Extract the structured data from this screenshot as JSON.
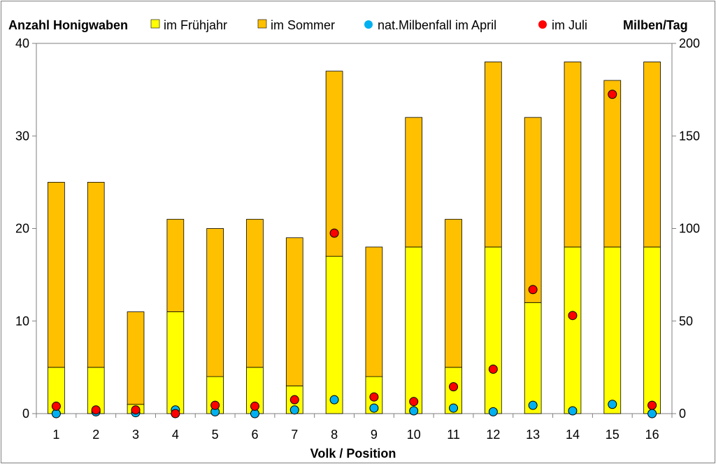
{
  "chart_data": {
    "type": "bar",
    "stacked": true,
    "xlabel": "Volk / Position",
    "y_left_label": "Anzahl Honigwaben",
    "y_right_label": "Milben/Tag",
    "categories": [
      "1",
      "2",
      "3",
      "4",
      "5",
      "6",
      "7",
      "8",
      "9",
      "10",
      "11",
      "12",
      "13",
      "14",
      "15",
      "16"
    ],
    "y_left_lim": [
      0,
      40
    ],
    "y_left_ticks": [
      "0",
      "10",
      "20",
      "30",
      "40"
    ],
    "y_right_lim": [
      0,
      200
    ],
    "y_right_ticks": [
      "0",
      "50",
      "100",
      "150",
      "200"
    ],
    "grid": false,
    "legend_position": "top",
    "bar_series": [
      {
        "name": "im Frühjahr",
        "color": "#ffff00",
        "values": [
          5,
          5,
          1,
          11,
          4,
          5,
          3,
          17,
          4,
          18,
          5,
          18,
          12,
          18,
          18,
          18
        ]
      },
      {
        "name": "im Sommer",
        "color": "#ffc000",
        "values": [
          20,
          20,
          10,
          10,
          16,
          16,
          16,
          20,
          14,
          14,
          16,
          20,
          20,
          20,
          18,
          20
        ]
      }
    ],
    "point_series": [
      {
        "name": "nat.Milbenfall im April",
        "color": "#00b0f0",
        "axis": "right",
        "values": [
          0,
          1,
          0.5,
          2,
          1,
          0,
          2,
          7.5,
          3,
          1.5,
          3,
          1,
          4.5,
          1.5,
          5,
          0
        ]
      },
      {
        "name": "im Juli",
        "color": "#ff0000",
        "axis": "right",
        "values": [
          4,
          2,
          2,
          0,
          4.5,
          4,
          7.5,
          97.5,
          9,
          6.5,
          14.5,
          24,
          67,
          53,
          172.5,
          4.5
        ]
      }
    ]
  }
}
